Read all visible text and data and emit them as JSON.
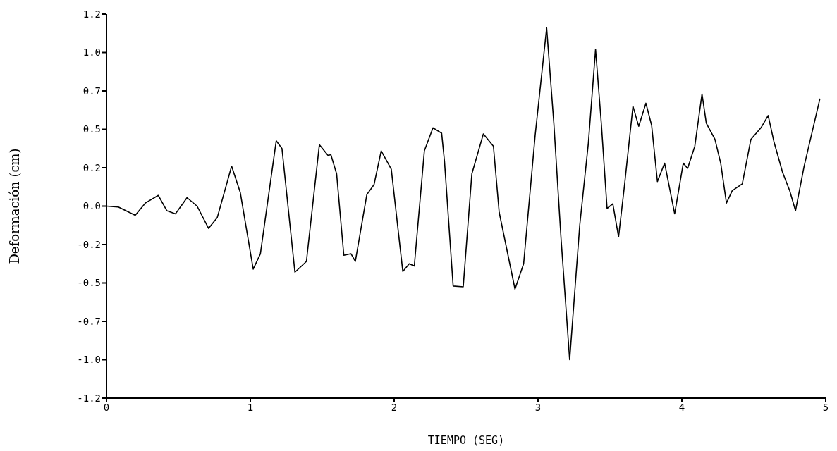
{
  "chart_data": {
    "type": "line",
    "xlabel": "TIEMPO  (SEG)",
    "ylabel": "Deformación  (cm)",
    "xlim": [
      0,
      5
    ],
    "xticks": [
      0,
      1,
      2,
      3,
      4,
      5
    ],
    "ylim": [
      -1.25,
      1.25
    ],
    "yticks": [
      {
        "value": 1.25,
        "label": "1.2"
      },
      {
        "value": 1.0,
        "label": "1.0"
      },
      {
        "value": 0.75,
        "label": "0.7"
      },
      {
        "value": 0.5,
        "label": "0.5"
      },
      {
        "value": 0.25,
        "label": "0.2"
      },
      {
        "value": 0,
        "label": "0.0"
      },
      {
        "value": -0.25,
        "label": "-0.2"
      },
      {
        "value": -0.5,
        "label": "-0.5"
      },
      {
        "value": -0.75,
        "label": "-0.7"
      },
      {
        "value": -1.0,
        "label": "-1.0"
      },
      {
        "value": -1.25,
        "label": "-1.2"
      }
    ],
    "grid": false,
    "legend": false,
    "marker": "none",
    "line_style": "solid",
    "ref_lines": [
      {
        "axis": "y",
        "value": 0,
        "label": null,
        "color": "#000000"
      }
    ],
    "series": [
      {
        "color": "#000000",
        "x": [
          0,
          0.08,
          0.2,
          0.27,
          0.36,
          0.42,
          0.48,
          0.56,
          0.63,
          0.71,
          0.77,
          0.87,
          0.93,
          1.02,
          1.07,
          1.18,
          1.22,
          1.31,
          1.39,
          1.48,
          1.54,
          1.56,
          1.6,
          1.65,
          1.7,
          1.73,
          1.81,
          1.86,
          1.91,
          1.98,
          2.06,
          2.105,
          2.14,
          2.21,
          2.27,
          2.33,
          2.35,
          2.41,
          2.48,
          2.54,
          2.62,
          2.69,
          2.73,
          2.84,
          2.9,
          2.98,
          3.06,
          3.11,
          3.16,
          3.22,
          3.29,
          3.35,
          3.4,
          3.44,
          3.48,
          3.52,
          3.56,
          3.6,
          3.66,
          3.7,
          3.75,
          3.79,
          3.83,
          3.88,
          3.95,
          4.01,
          4.04,
          4.09,
          4.14,
          4.17,
          4.23,
          4.27,
          4.31,
          4.35,
          4.42,
          4.48,
          4.55,
          4.6,
          4.64,
          4.7,
          4.75,
          4.79,
          4.85,
          4.96
        ],
        "values": [
          0,
          -0.005,
          -0.06,
          0.02,
          0.07,
          -0.03,
          -0.05,
          0.055,
          0,
          -0.145,
          -0.075,
          0.26,
          0.09,
          -0.41,
          -0.31,
          0.425,
          0.375,
          -0.43,
          -0.36,
          0.4,
          0.33,
          0.335,
          0.21,
          -0.32,
          -0.31,
          -0.36,
          0.075,
          0.14,
          0.36,
          0.24,
          -0.425,
          -0.375,
          -0.39,
          0.36,
          0.51,
          0.475,
          0.29,
          -0.52,
          -0.525,
          0.21,
          0.47,
          0.39,
          -0.04,
          -0.54,
          -0.375,
          0.46,
          1.16,
          0.54,
          -0.21,
          -1.0,
          -0.125,
          0.41,
          1.02,
          0.54,
          -0.015,
          0.015,
          -0.2,
          0.125,
          0.65,
          0.52,
          0.67,
          0.525,
          0.16,
          0.28,
          -0.05,
          0.28,
          0.245,
          0.39,
          0.73,
          0.54,
          0.435,
          0.28,
          0.02,
          0.1,
          0.145,
          0.435,
          0.51,
          0.59,
          0.42,
          0.22,
          0.1,
          -0.03,
          0.26,
          0.7
        ]
      }
    ]
  }
}
